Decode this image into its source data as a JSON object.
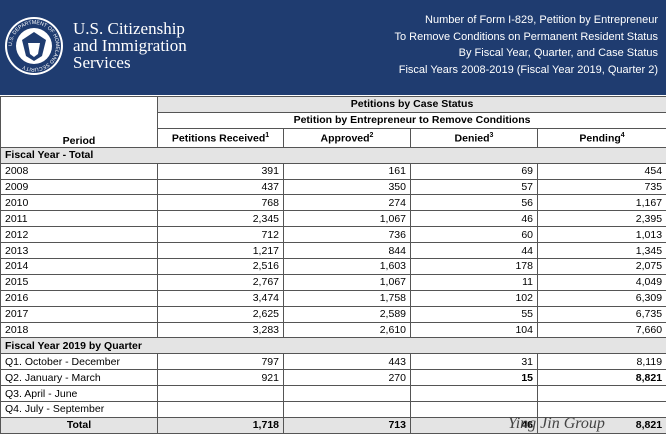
{
  "header": {
    "agency": [
      "U.S. Citizenship",
      "and Immigration",
      "Services"
    ],
    "seal_text": "U.S. DEPARTMENT OF HOMELAND SECURITY",
    "title_lines": [
      "Number of Form I-829, Petition by Entrepreneur",
      "To Remove Conditions on Permanent Resident Status",
      "By Fiscal Year, Quarter, and Case Status",
      "Fiscal Years 2008-2019 (Fiscal Year 2019, Quarter 2)"
    ]
  },
  "table": {
    "group_header": "Petitions by Case Status",
    "subgroup_header": "Petition by Entrepreneur to Remove Conditions",
    "period_header": "Period",
    "columns": [
      {
        "label": "Petitions Received",
        "note": "1"
      },
      {
        "label": "Approved",
        "note": "2"
      },
      {
        "label": "Denied",
        "note": "3"
      },
      {
        "label": "Pending",
        "note": "4"
      }
    ],
    "sections": [
      {
        "title": "Fiscal Year - Total",
        "rows": [
          {
            "period": "2008",
            "cells": [
              "391",
              "161",
              "69",
              "454"
            ]
          },
          {
            "period": "2009",
            "cells": [
              "437",
              "350",
              "57",
              "735"
            ]
          },
          {
            "period": "2010",
            "cells": [
              "768",
              "274",
              "56",
              "1,167"
            ]
          },
          {
            "period": "2011",
            "cells": [
              "2,345",
              "1,067",
              "46",
              "2,395"
            ]
          },
          {
            "period": "2012",
            "cells": [
              "712",
              "736",
              "60",
              "1,013"
            ]
          },
          {
            "period": "2013",
            "cells": [
              "1,217",
              "844",
              "44",
              "1,345"
            ]
          },
          {
            "period": "2014",
            "cells": [
              "2,516",
              "1,603",
              "178",
              "2,075"
            ]
          },
          {
            "period": "2015",
            "cells": [
              "2,767",
              "1,067",
              "11",
              "4,049"
            ]
          },
          {
            "period": "2016",
            "cells": [
              "3,474",
              "1,758",
              "102",
              "6,309"
            ]
          },
          {
            "period": "2017",
            "cells": [
              "2,625",
              "2,589",
              "55",
              "6,735"
            ]
          },
          {
            "period": "2018",
            "cells": [
              "3,283",
              "2,610",
              "104",
              "7,660"
            ]
          }
        ]
      },
      {
        "title": "Fiscal Year 2019 by Quarter",
        "rows": [
          {
            "period": "Q1. October - December",
            "cells": [
              "797",
              "443",
              "31",
              "8,119"
            ]
          },
          {
            "period": "Q2. January - March",
            "cells": [
              "921",
              "270",
              "15",
              "8,821"
            ],
            "bold_cells": [
              2,
              3
            ]
          },
          {
            "period": "Q3. April - June"
          },
          {
            "period": "Q4. July - September"
          }
        ]
      }
    ],
    "total": {
      "period": "Total",
      "cells": [
        "1,718",
        "713",
        "46",
        "8,821"
      ]
    }
  },
  "watermark": "Ying Jin Group"
}
